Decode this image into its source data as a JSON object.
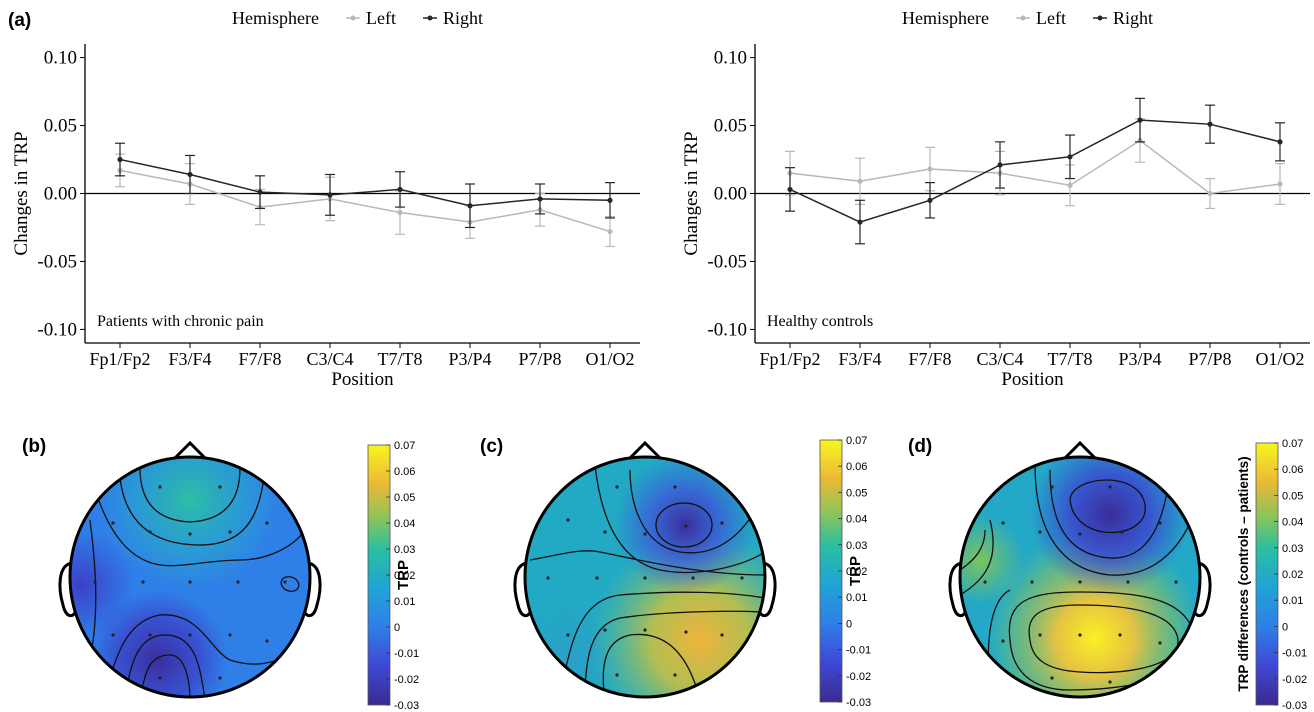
{
  "panel_labels": [
    "(a)",
    "(b)",
    "(c)",
    "(d)"
  ],
  "colors": {
    "left": "#b8b8b8",
    "right": "#262626"
  },
  "chart_data": [
    {
      "type": "line",
      "panel": "(a) left",
      "annotation": "Patients with chronic pain",
      "xlabel": "Position",
      "ylabel": "Changes in TRP",
      "ylim": [
        -0.11,
        0.11
      ],
      "yticks": [
        "-0.10",
        "-0.05",
        "0.00",
        "0.05",
        "0.10"
      ],
      "legend": {
        "title": "Hemisphere",
        "placement": "top"
      },
      "categories": [
        "Fp1/Fp2",
        "F3/F4",
        "F7/F8",
        "C3/C4",
        "T7/T8",
        "P3/P4",
        "P7/P8",
        "O1/O2"
      ],
      "series": [
        {
          "name": "Left",
          "values": [
            0.017,
            0.007,
            -0.01,
            -0.004,
            -0.014,
            -0.021,
            -0.012,
            -0.028
          ],
          "err": [
            0.012,
            0.015,
            0.013,
            0.016,
            0.016,
            0.012,
            0.012,
            0.011
          ]
        },
        {
          "name": "Right",
          "values": [
            0.025,
            0.014,
            0.001,
            -0.001,
            0.003,
            -0.009,
            -0.004,
            -0.005
          ],
          "err": [
            0.012,
            0.014,
            0.012,
            0.015,
            0.013,
            0.016,
            0.011,
            0.013
          ]
        }
      ]
    },
    {
      "type": "line",
      "panel": "(a) right",
      "annotation": "Healthy controls",
      "xlabel": "Position",
      "ylabel": "Changes in TRP",
      "ylim": [
        -0.11,
        0.11
      ],
      "yticks": [
        "-0.10",
        "-0.05",
        "0.00",
        "0.05",
        "0.10"
      ],
      "legend": {
        "title": "Hemisphere",
        "placement": "top"
      },
      "categories": [
        "Fp1/Fp2",
        "F3/F4",
        "F7/F8",
        "C3/C4",
        "T7/T8",
        "P3/P4",
        "P7/P8",
        "O1/O2"
      ],
      "series": [
        {
          "name": "Left",
          "values": [
            0.015,
            0.009,
            0.018,
            0.015,
            0.006,
            0.039,
            0.0,
            0.007
          ],
          "err": [
            0.016,
            0.017,
            0.016,
            0.016,
            0.015,
            0.016,
            0.011,
            0.015
          ]
        },
        {
          "name": "Right",
          "values": [
            0.003,
            -0.021,
            -0.005,
            0.021,
            0.027,
            0.054,
            0.051,
            0.038
          ],
          "err": [
            0.016,
            0.016,
            0.013,
            0.017,
            0.016,
            0.016,
            0.014,
            0.014
          ]
        }
      ]
    },
    {
      "type": "heatmap",
      "panel": "(b)",
      "colorbar_label": "TRP",
      "colorbar_ticks": [
        "0.07",
        "0.06",
        "0.05",
        "0.04",
        "0.03",
        "0.02",
        "0.01",
        "0",
        "-0.01",
        "-0.02",
        "-0.03"
      ],
      "range": [
        -0.03,
        0.07
      ]
    },
    {
      "type": "heatmap",
      "panel": "(c)",
      "colorbar_label": "TRP",
      "colorbar_ticks": [
        "0.07",
        "0.06",
        "0.05",
        "0.04",
        "0.03",
        "0.02",
        "0.01",
        "0",
        "-0.01",
        "-0.02",
        "-0.03"
      ],
      "range": [
        -0.03,
        0.07
      ]
    },
    {
      "type": "heatmap",
      "panel": "(d)",
      "colorbar_label": "TRP differences (controls – patients)",
      "colorbar_ticks": [
        "0.07",
        "0.06",
        "0.05",
        "0.04",
        "0.03",
        "0.02",
        "0.01",
        "0",
        "-0.01",
        "-0.02",
        "-0.03"
      ],
      "range": [
        -0.03,
        0.07
      ]
    }
  ]
}
